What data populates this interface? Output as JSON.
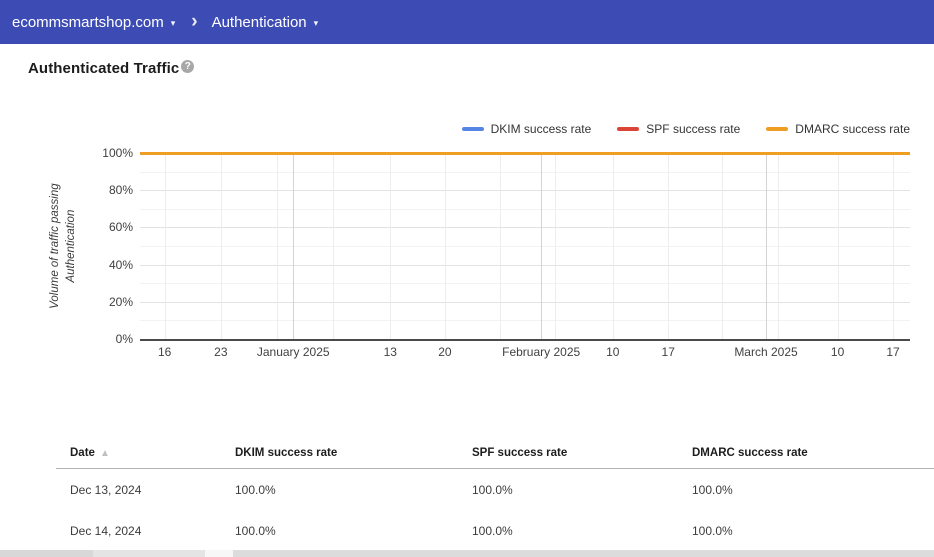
{
  "header": {
    "domain": "ecommsmartshop.com",
    "section": "Authentication",
    "caret": "▾",
    "separator": "›"
  },
  "page": {
    "title": "Authenticated Traffic",
    "help_icon": "?"
  },
  "chart_data": {
    "type": "line",
    "title": "Authenticated Traffic",
    "ylabel": "Volume of traffic passing Authentication",
    "ylabel_lines": [
      "Volume of traffic passing",
      "Authentication"
    ],
    "ylim": [
      0,
      100
    ],
    "y_unit": "%",
    "grid": true,
    "legend_position": "top-right",
    "y_ticks": [
      {
        "label": "100%",
        "value": 100
      },
      {
        "label": "80%",
        "value": 80
      },
      {
        "label": "60%",
        "value": 60
      },
      {
        "label": "40%",
        "value": 40
      },
      {
        "label": "20%",
        "value": 20
      },
      {
        "label": "0%",
        "value": 0
      }
    ],
    "y_gridlines_major": [
      20,
      40,
      60,
      80
    ],
    "y_gridlines_minor": [
      10,
      30,
      50,
      70,
      90
    ],
    "x_ticks": [
      {
        "label": "16",
        "pos": 3.2,
        "type": "week"
      },
      {
        "label": "23",
        "pos": 10.5,
        "type": "week"
      },
      {
        "label": "January 2025",
        "pos": 19.9,
        "type": "month"
      },
      {
        "label": "13",
        "pos": 32.5,
        "type": "week"
      },
      {
        "label": "20",
        "pos": 39.6,
        "type": "week"
      },
      {
        "label": "February 2025",
        "pos": 52.1,
        "type": "month"
      },
      {
        "label": "10",
        "pos": 61.4,
        "type": "week"
      },
      {
        "label": "17",
        "pos": 68.6,
        "type": "week"
      },
      {
        "label": "March 2025",
        "pos": 81.3,
        "type": "month"
      },
      {
        "label": "10",
        "pos": 90.6,
        "type": "week"
      },
      {
        "label": "17",
        "pos": 97.8,
        "type": "week"
      }
    ],
    "week_line_pos": [
      3.2,
      10.5,
      17.8,
      25.1,
      32.5,
      39.6,
      46.8,
      53.9,
      61.4,
      68.6,
      75.6,
      82.9,
      90.6,
      97.8
    ],
    "month_line_pos": [
      19.9,
      52.1,
      81.3
    ],
    "series": [
      {
        "name": "DKIM success rate",
        "color": "#5585e5",
        "value_percent": 100
      },
      {
        "name": "SPF success rate",
        "color": "#db4437",
        "value_percent": 100
      },
      {
        "name": "DMARC success rate",
        "color": "#f09d24",
        "value_percent": 100
      }
    ]
  },
  "table": {
    "columns": [
      "Date",
      "DKIM success rate",
      "SPF success rate",
      "DMARC success rate"
    ],
    "sort_icon": "▲",
    "rows": [
      {
        "cells": [
          "Dec 13, 2024",
          "100.0%",
          "100.0%",
          "100.0%"
        ]
      },
      {
        "cells": [
          "Dec 14, 2024",
          "100.0%",
          "100.0%",
          "100.0%"
        ]
      }
    ]
  }
}
